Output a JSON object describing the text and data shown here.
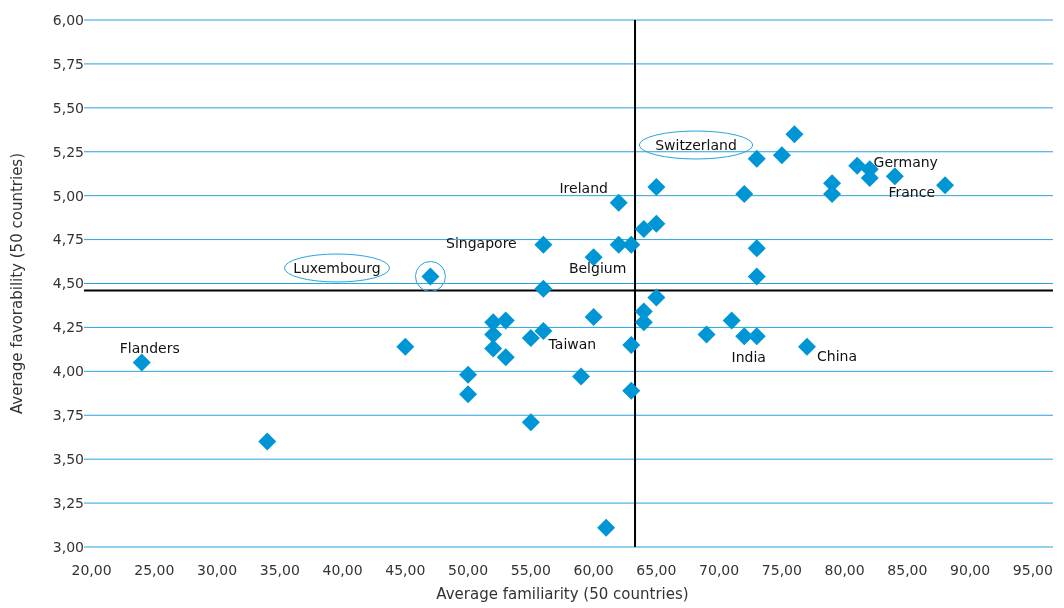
{
  "chart_data": {
    "type": "scatter",
    "xlabel": "Average familiarity (50 countries)",
    "ylabel": "Average favorability (50 countries)",
    "x": [
      24,
      34,
      45,
      47,
      50,
      50,
      52,
      52,
      52,
      53,
      53,
      55,
      55,
      56,
      56,
      56,
      59,
      60,
      60,
      61,
      62,
      62,
      63,
      63,
      63,
      64,
      64,
      64,
      65,
      65,
      65,
      69,
      71,
      72,
      73,
      72,
      73,
      73,
      73,
      75,
      76,
      77,
      79,
      79,
      81,
      82,
      82,
      84,
      88
    ],
    "series": [
      {
        "color": "#0096d6",
        "values": [
          4.05,
          3.6,
          4.14,
          4.54,
          3.98,
          3.87,
          4.28,
          4.21,
          4.13,
          4.29,
          4.08,
          3.71,
          4.19,
          4.72,
          4.47,
          4.23,
          3.97,
          4.65,
          4.31,
          3.11,
          4.96,
          4.72,
          4.72,
          4.15,
          3.89,
          4.81,
          4.34,
          4.28,
          5.05,
          4.84,
          4.42,
          4.21,
          4.29,
          4.2,
          4.2,
          5.01,
          5.21,
          4.7,
          4.54,
          5.23,
          5.35,
          4.14,
          5.07,
          5.01,
          5.17,
          5.15,
          5.1,
          5.11,
          5.06
        ]
      }
    ],
    "marker": "diamond",
    "grid": "y",
    "xlim": [
      19.4,
      96.6
    ],
    "xticks": [
      {
        "value": 20,
        "label": "20,00"
      },
      {
        "value": 25,
        "label": "25,00"
      },
      {
        "value": 30,
        "label": "30,00"
      },
      {
        "value": 35,
        "label": "35,00"
      },
      {
        "value": 40,
        "label": "40,00"
      },
      {
        "value": 45,
        "label": "45,00"
      },
      {
        "value": 50,
        "label": "50,00"
      },
      {
        "value": 55,
        "label": "55,00"
      },
      {
        "value": 60,
        "label": "60,00"
      },
      {
        "value": 65,
        "label": "65,00"
      },
      {
        "value": 70,
        "label": "70,00"
      },
      {
        "value": 75,
        "label": "75,00"
      },
      {
        "value": 80,
        "label": "80,00"
      },
      {
        "value": 85,
        "label": "85,00"
      },
      {
        "value": 90,
        "label": "90,00"
      },
      {
        "value": 95,
        "label": "95,00"
      }
    ],
    "ylim": [
      3,
      6
    ],
    "yticks": [
      {
        "value": 3,
        "label": "3,00"
      },
      {
        "value": 3.25,
        "label": "3,25"
      },
      {
        "value": 3.5,
        "label": "3,50"
      },
      {
        "value": 3.75,
        "label": "3,75"
      },
      {
        "value": 4,
        "label": "4,00"
      },
      {
        "value": 4.25,
        "label": "4,25"
      },
      {
        "value": 4.5,
        "label": "4,50"
      },
      {
        "value": 4.75,
        "label": "4,75"
      },
      {
        "value": 5,
        "label": "5,00"
      },
      {
        "value": 5.25,
        "label": "5,25"
      },
      {
        "value": 5.5,
        "label": "5,50"
      },
      {
        "value": 5.75,
        "label": "5,75"
      },
      {
        "value": 6,
        "label": "6,00"
      }
    ],
    "ref_lines": [
      {
        "axis": "x",
        "value": 63.3,
        "color": "#000000"
      },
      {
        "axis": "y",
        "value": 4.46,
        "color": "#000000"
      }
    ],
    "annotations": [
      {
        "text": "Flanders",
        "x": 24,
        "y": 4.05
      },
      "Luxembourg",
      {
        "text": "Singapore",
        "x": 56,
        "y": 4.72
      },
      {
        "text": "Ireland",
        "x": 62,
        "y": 4.96
      },
      {
        "text": "Belgium",
        "x": 60,
        "y": 4.65
      },
      {
        "text": "Taiwan",
        "x": 56,
        "y": 4.23
      },
      "Switzerland",
      {
        "text": "Germany",
        "x": 82,
        "y": 5.15
      },
      {
        "text": "France",
        "x": 82,
        "y": 5.1
      },
      {
        "text": "India",
        "x": 73,
        "y": 4.2
      },
      {
        "text": "China",
        "x": 77,
        "y": 4.14
      }
    ]
  }
}
